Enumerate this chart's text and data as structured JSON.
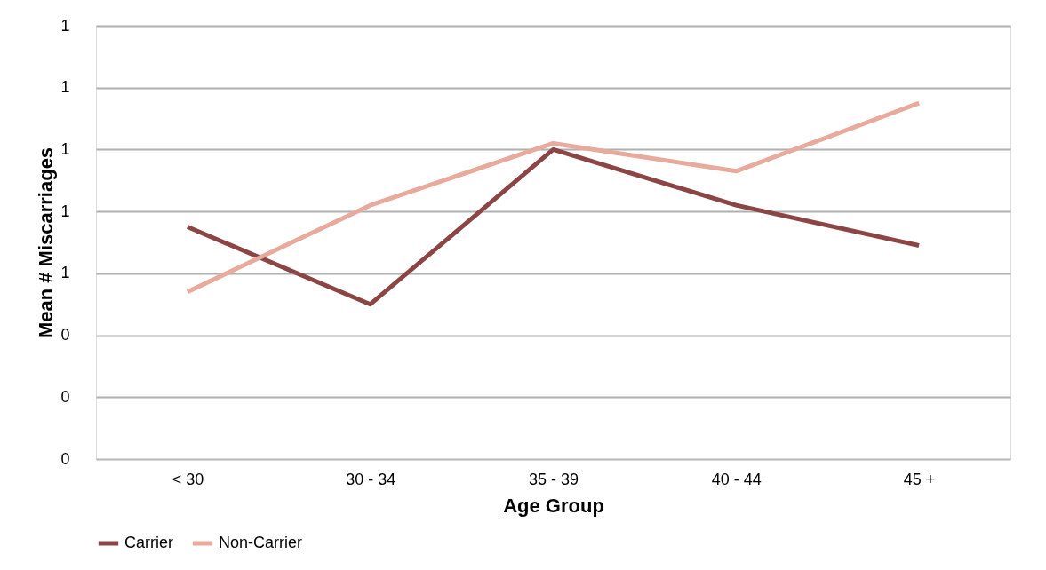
{
  "chart_data": {
    "type": "line",
    "xlabel": "Age Group",
    "ylabel": "Mean # Miscarriages",
    "categories": [
      "< 30",
      "30 - 34",
      "35 - 39",
      "40 - 44",
      "45 +"
    ],
    "series": [
      {
        "name": "Carrier",
        "color": "#8b4545",
        "values": [
          0.75,
          0.5,
          1.0,
          0.82,
          0.69
        ]
      },
      {
        "name": "Non-Carrier",
        "color": "#e8aa9c",
        "values": [
          0.54,
          0.82,
          1.02,
          0.93,
          1.15
        ]
      }
    ],
    "ylim": [
      0,
      1.4
    ],
    "yticks": [
      0,
      {
        "value": 0.2,
        "label": "0"
      },
      {
        "value": 0.4,
        "label": "0"
      },
      {
        "value": 0.6,
        "label": "1"
      },
      {
        "value": 0.8,
        "label": "1"
      },
      {
        "value": 1.0,
        "label": "1"
      },
      {
        "value": 1.2,
        "label": "1"
      },
      {
        "value": 1.4,
        "label": "1"
      }
    ],
    "grid": "y",
    "legend": "bottom",
    "marker": "none",
    "line_style": "solid"
  }
}
